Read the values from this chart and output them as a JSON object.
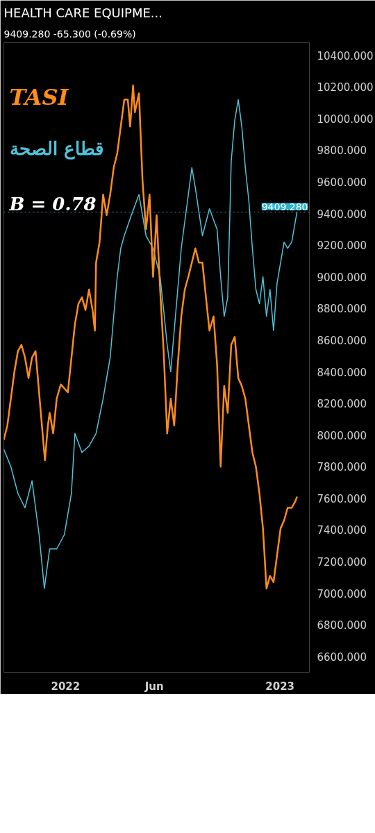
{
  "chart_data": {
    "type": "line",
    "title": "HEALTH CARE EQUIPME...",
    "subtitle": "9409.280  -65.300 (-0.69%)",
    "annotations": [
      "B = 0.78"
    ],
    "xlim": [
      "2021-09-18",
      "2023-02-20"
    ],
    "ylim": [
      6500,
      10480
    ],
    "xticks": [
      {
        "value": "2022-01-01",
        "label": "2022"
      },
      {
        "value": "2022-06-01",
        "label": "Jun"
      },
      {
        "value": "2023-01-01",
        "label": "2023"
      }
    ],
    "yticks": [
      {
        "value": 6600,
        "label": "6600.000"
      },
      {
        "value": 6800,
        "label": "6800.000"
      },
      {
        "value": 7000,
        "label": "7000.000"
      },
      {
        "value": 7200,
        "label": "7200.000"
      },
      {
        "value": 7400,
        "label": "7400.000"
      },
      {
        "value": 7600,
        "label": "7600.000"
      },
      {
        "value": 7800,
        "label": "7800.000"
      },
      {
        "value": 8000,
        "label": "8000.000"
      },
      {
        "value": 8200,
        "label": "8200.000"
      },
      {
        "value": 8400,
        "label": "8400.000"
      },
      {
        "value": 8600,
        "label": "8600.000"
      },
      {
        "value": 8800,
        "label": "8800.000"
      },
      {
        "value": 9000,
        "label": "9000.000"
      },
      {
        "value": 9200,
        "label": "9200.000"
      },
      {
        "value": 9400,
        "label": "9400.000"
      },
      {
        "value": 9600,
        "label": "9600.000"
      },
      {
        "value": 9800,
        "label": "9800.000"
      },
      {
        "value": 10000,
        "label": "10000.000"
      },
      {
        "value": 10200,
        "label": "10200.000"
      },
      {
        "value": 10400,
        "label": "10400.000"
      }
    ],
    "grid": false,
    "legend": "top left",
    "marker": "none",
    "line_style": "solid",
    "ref_lines": [
      {
        "axis": "y",
        "value": 9409.28,
        "label": "9409.280",
        "color": "#26b6cf",
        "line_style": "dotted"
      }
    ],
    "series": [
      {
        "name": "قطاع الصحة",
        "color": "#4fc3d9",
        "x": [
          "2021-09-18",
          "2021-09-30",
          "2021-10-12",
          "2021-10-24",
          "2021-11-05",
          "2021-11-17",
          "2021-11-26",
          "2021-12-05",
          "2021-12-17",
          "2021-12-30",
          "2022-01-11",
          "2022-01-17",
          "2022-01-29",
          "2022-02-10",
          "2022-02-22",
          "2022-03-06",
          "2022-03-18",
          "2022-03-24",
          "2022-03-30",
          "2022-04-05",
          "2022-04-11",
          "2022-04-23",
          "2022-05-06",
          "2022-05-18",
          "2022-05-30",
          "2022-06-11",
          "2022-06-17",
          "2022-06-23",
          "2022-06-29",
          "2022-07-05",
          "2022-07-17",
          "2022-07-29",
          "2022-08-04",
          "2022-08-10",
          "2022-08-22",
          "2022-09-03",
          "2022-09-16",
          "2022-09-22",
          "2022-09-28",
          "2022-10-04",
          "2022-10-10",
          "2022-10-16",
          "2022-10-22",
          "2022-10-28",
          "2022-11-03",
          "2022-11-09",
          "2022-11-15",
          "2022-11-21",
          "2022-11-27",
          "2022-12-03",
          "2022-12-09",
          "2022-12-15",
          "2022-12-21",
          "2022-12-27",
          "2023-01-02",
          "2023-01-08",
          "2023-01-14",
          "2023-01-21",
          "2023-01-27",
          "2023-01-30"
        ],
        "values": [
          7910,
          7800,
          7630,
          7540,
          7710,
          7370,
          7030,
          7280,
          7280,
          7370,
          7630,
          8010,
          7890,
          7930,
          8010,
          8230,
          8490,
          8750,
          9000,
          9180,
          9260,
          9390,
          9520,
          9260,
          9180,
          9000,
          8790,
          8570,
          8400,
          8660,
          9180,
          9520,
          9690,
          9560,
          9260,
          9430,
          9300,
          9000,
          8750,
          8870,
          9730,
          9990,
          10120,
          9950,
          9690,
          9480,
          9180,
          8920,
          8830,
          9000,
          8750,
          8920,
          8660,
          8960,
          9090,
          9220,
          9180,
          9220,
          9350,
          9410
        ]
      },
      {
        "name": "TASI",
        "color": "#ff8c1a",
        "x": [
          "2021-09-18",
          "2021-09-24",
          "2021-09-30",
          "2021-10-06",
          "2021-10-12",
          "2021-10-18",
          "2021-10-24",
          "2021-10-30",
          "2021-11-05",
          "2021-11-11",
          "2021-11-17",
          "2021-11-23",
          "2021-11-27",
          "2021-12-02",
          "2021-12-05",
          "2021-12-11",
          "2021-12-17",
          "2021-12-24",
          "2022-01-05",
          "2022-01-17",
          "2022-01-23",
          "2022-01-29",
          "2022-02-04",
          "2022-02-10",
          "2022-02-16",
          "2022-02-20",
          "2022-02-22",
          "2022-02-28",
          "2022-03-06",
          "2022-03-12",
          "2022-03-18",
          "2022-03-24",
          "2022-03-30",
          "2022-04-05",
          "2022-04-11",
          "2022-04-17",
          "2022-04-21",
          "2022-04-26",
          "2022-04-29",
          "2022-05-06",
          "2022-05-12",
          "2022-05-18",
          "2022-05-24",
          "2022-05-30",
          "2022-06-05",
          "2022-06-11",
          "2022-06-17",
          "2022-06-23",
          "2022-06-29",
          "2022-07-05",
          "2022-07-11",
          "2022-07-17",
          "2022-07-23",
          "2022-07-29",
          "2022-08-04",
          "2022-08-10",
          "2022-08-16",
          "2022-08-22",
          "2022-08-28",
          "2022-09-03",
          "2022-09-10",
          "2022-09-16",
          "2022-09-22",
          "2022-09-28",
          "2022-10-04",
          "2022-10-10",
          "2022-10-16",
          "2022-10-22",
          "2022-10-28",
          "2022-11-03",
          "2022-11-09",
          "2022-11-15",
          "2022-11-21",
          "2022-11-27",
          "2022-12-03",
          "2022-12-09",
          "2022-12-15",
          "2022-12-21",
          "2022-12-27",
          "2023-01-02",
          "2023-01-08",
          "2023-01-14",
          "2023-01-21",
          "2023-01-27",
          "2023-01-30"
        ],
        "values": [
          7970,
          8060,
          8230,
          8400,
          8530,
          8570,
          8490,
          8360,
          8490,
          8530,
          8270,
          8010,
          7840,
          8060,
          8140,
          8010,
          8230,
          8320,
          8270,
          8700,
          8830,
          8870,
          8790,
          8920,
          8790,
          8660,
          9090,
          9220,
          9520,
          9390,
          9520,
          9690,
          9780,
          9950,
          10120,
          10120,
          9950,
          10210,
          10040,
          10160,
          9610,
          9300,
          9520,
          9000,
          9390,
          8920,
          8530,
          8010,
          8230,
          8060,
          8440,
          8750,
          8920,
          9000,
          9090,
          9180,
          9090,
          9090,
          8870,
          8660,
          8750,
          8440,
          7800,
          8310,
          8140,
          8570,
          8620,
          8360,
          8310,
          8230,
          8060,
          7890,
          7800,
          7630,
          7410,
          7030,
          7110,
          7070,
          7240,
          7410,
          7460,
          7540,
          7540,
          7580,
          7610
        ]
      }
    ]
  }
}
